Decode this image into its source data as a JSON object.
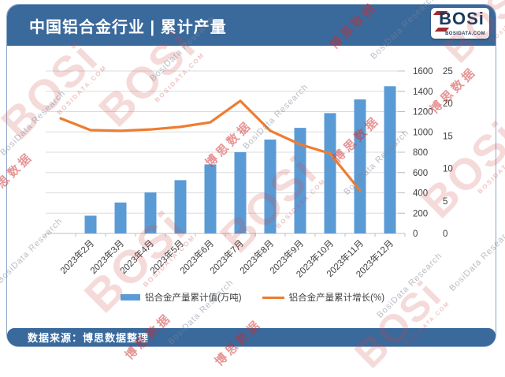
{
  "header": {
    "title": "中国铝合金行业 | 累计产量"
  },
  "logo": {
    "name": "BOSi",
    "domain": "BOSIDATA.COM"
  },
  "footer": {
    "source": "数据来源：博思数据整理"
  },
  "watermark": {
    "logo_text": "BOSi",
    "logo_sub": "BOSIDATA.COM",
    "cn_text": "博思数据",
    "en_text": "BosiData Research"
  },
  "chart_data": {
    "type": "combo",
    "categories": [
      "2023年2月",
      "2023年3月",
      "2023年4月",
      "2023年5月",
      "2023年6月",
      "2023年7月",
      "2023年8月",
      "2023年9月",
      "2023年10月",
      "2023年11月",
      "2023年12月"
    ],
    "series": [
      {
        "name": "铝合金产量累计值(万吨)",
        "type": "bar",
        "axis": "primary",
        "color": "#5B9BD5",
        "values": [
          175,
          305,
          405,
          525,
          680,
          800,
          925,
          1040,
          1185,
          1320,
          1450
        ]
      },
      {
        "name": "铝合金产量累计增长(%)",
        "type": "line",
        "axis": "secondary",
        "color": "#ED7D31",
        "values": [
          17.7,
          15.9,
          15.8,
          16.0,
          16.4,
          17.1,
          20.4,
          15.8,
          13.7,
          12.3,
          6.6
        ]
      }
    ],
    "primary_axis": {
      "min": 0,
      "max": 1600,
      "step": 200,
      "side": "right-inner",
      "ticks": [
        0,
        200,
        400,
        600,
        800,
        1000,
        1200,
        1400,
        1600
      ]
    },
    "secondary_axis": {
      "min": 0,
      "max": 25,
      "step": 5,
      "side": "right-outer",
      "ticks": [
        0,
        5,
        10,
        15,
        20,
        25
      ]
    },
    "grid": true,
    "legend_position": "bottom",
    "line_shifted_one_slot_left": true
  }
}
